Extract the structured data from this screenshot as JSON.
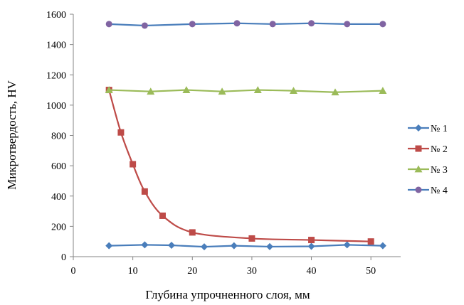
{
  "chart_data": {
    "type": "line",
    "xlabel": "Глубина упрочненного слоя, мм",
    "ylabel": "Микротвердость, HV",
    "xlim": [
      0,
      55
    ],
    "ylim": [
      0,
      1600
    ],
    "x_ticks": [
      0,
      10,
      20,
      30,
      40,
      50
    ],
    "y_ticks": [
      0,
      200,
      400,
      600,
      800,
      1000,
      1200,
      1400,
      1600
    ],
    "grid": false,
    "legend_position": "right",
    "series": [
      {
        "name": "№ 1",
        "color": "#4a7ebb",
        "marker": "diamond",
        "smooth": false,
        "x": [
          6,
          12,
          16.5,
          22,
          27,
          33,
          40,
          46,
          52
        ],
        "y": [
          72,
          78,
          75,
          65,
          72,
          66,
          68,
          78,
          72
        ]
      },
      {
        "name": "№ 2",
        "color": "#be4b48",
        "marker": "square",
        "smooth": true,
        "x": [
          6,
          8,
          10,
          12,
          15,
          20,
          30,
          40,
          50
        ],
        "y": [
          1100,
          820,
          610,
          430,
          270,
          160,
          120,
          110,
          100
        ]
      },
      {
        "name": "№ 3",
        "color": "#9bbb59",
        "marker": "triangle",
        "smooth": false,
        "x": [
          6,
          13,
          19,
          25,
          31,
          37,
          44,
          52
        ],
        "y": [
          1100,
          1090,
          1100,
          1090,
          1100,
          1095,
          1085,
          1095
        ]
      },
      {
        "name": "№ 4",
        "color": "#8064a2",
        "line_color": "#4a7ebb",
        "marker": "circle",
        "smooth": false,
        "x": [
          6,
          12,
          20,
          27.5,
          33.5,
          40,
          46,
          52
        ],
        "y": [
          1535,
          1525,
          1535,
          1540,
          1535,
          1540,
          1535,
          1535
        ]
      }
    ]
  }
}
